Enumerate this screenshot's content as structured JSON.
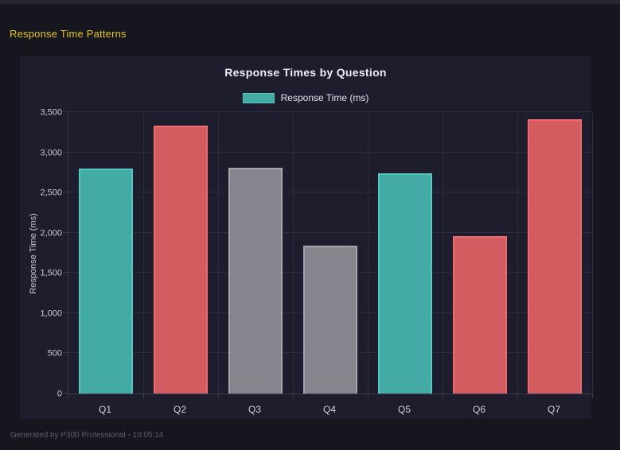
{
  "page": {
    "title": "Response Time Patterns",
    "status": "Generated by P300 Professional - 10:05:14"
  },
  "chart_data": {
    "type": "bar",
    "title": "Response Times by Question",
    "categories": [
      "Q1",
      "Q2",
      "Q3",
      "Q4",
      "Q5",
      "Q6",
      "Q7"
    ],
    "series": [
      {
        "name": "Response Time (ms)",
        "values": [
          2800,
          3330,
          2810,
          1840,
          2740,
          1960,
          3410
        ]
      }
    ],
    "bar_fill_colors": [
      "#43aaa5",
      "#d25c5f",
      "#85858d",
      "#85858d",
      "#43aaa5",
      "#d25c5f",
      "#d25c5f"
    ],
    "bar_border_colors": [
      "#52c8c0",
      "#ef6a6a",
      "#a5a5ad",
      "#a5a5ad",
      "#52c8c0",
      "#ef6a6a",
      "#ef6a6a"
    ],
    "xlabel": "",
    "ylabel": "Response Time (ms)",
    "ylim": [
      0,
      3500
    ],
    "ytick_step": 500,
    "legend": {
      "label": "Response Time (ms)",
      "position": "top"
    },
    "grid": true
  },
  "colors": {
    "page_bg": "#16161f",
    "panel_bg": "#1d1d2e",
    "top_strip": "#27272c",
    "accent_yellow": "#e4c51f",
    "grid_line": "#2c2c3e",
    "axis_line": "#3a3a4e",
    "teal_fill": "#43aaa5",
    "teal_border": "#52c8c0",
    "red_fill": "#d25c5f",
    "red_border": "#ef6a6a",
    "gray_fill": "#85858d",
    "gray_border": "#a5a5ad"
  }
}
